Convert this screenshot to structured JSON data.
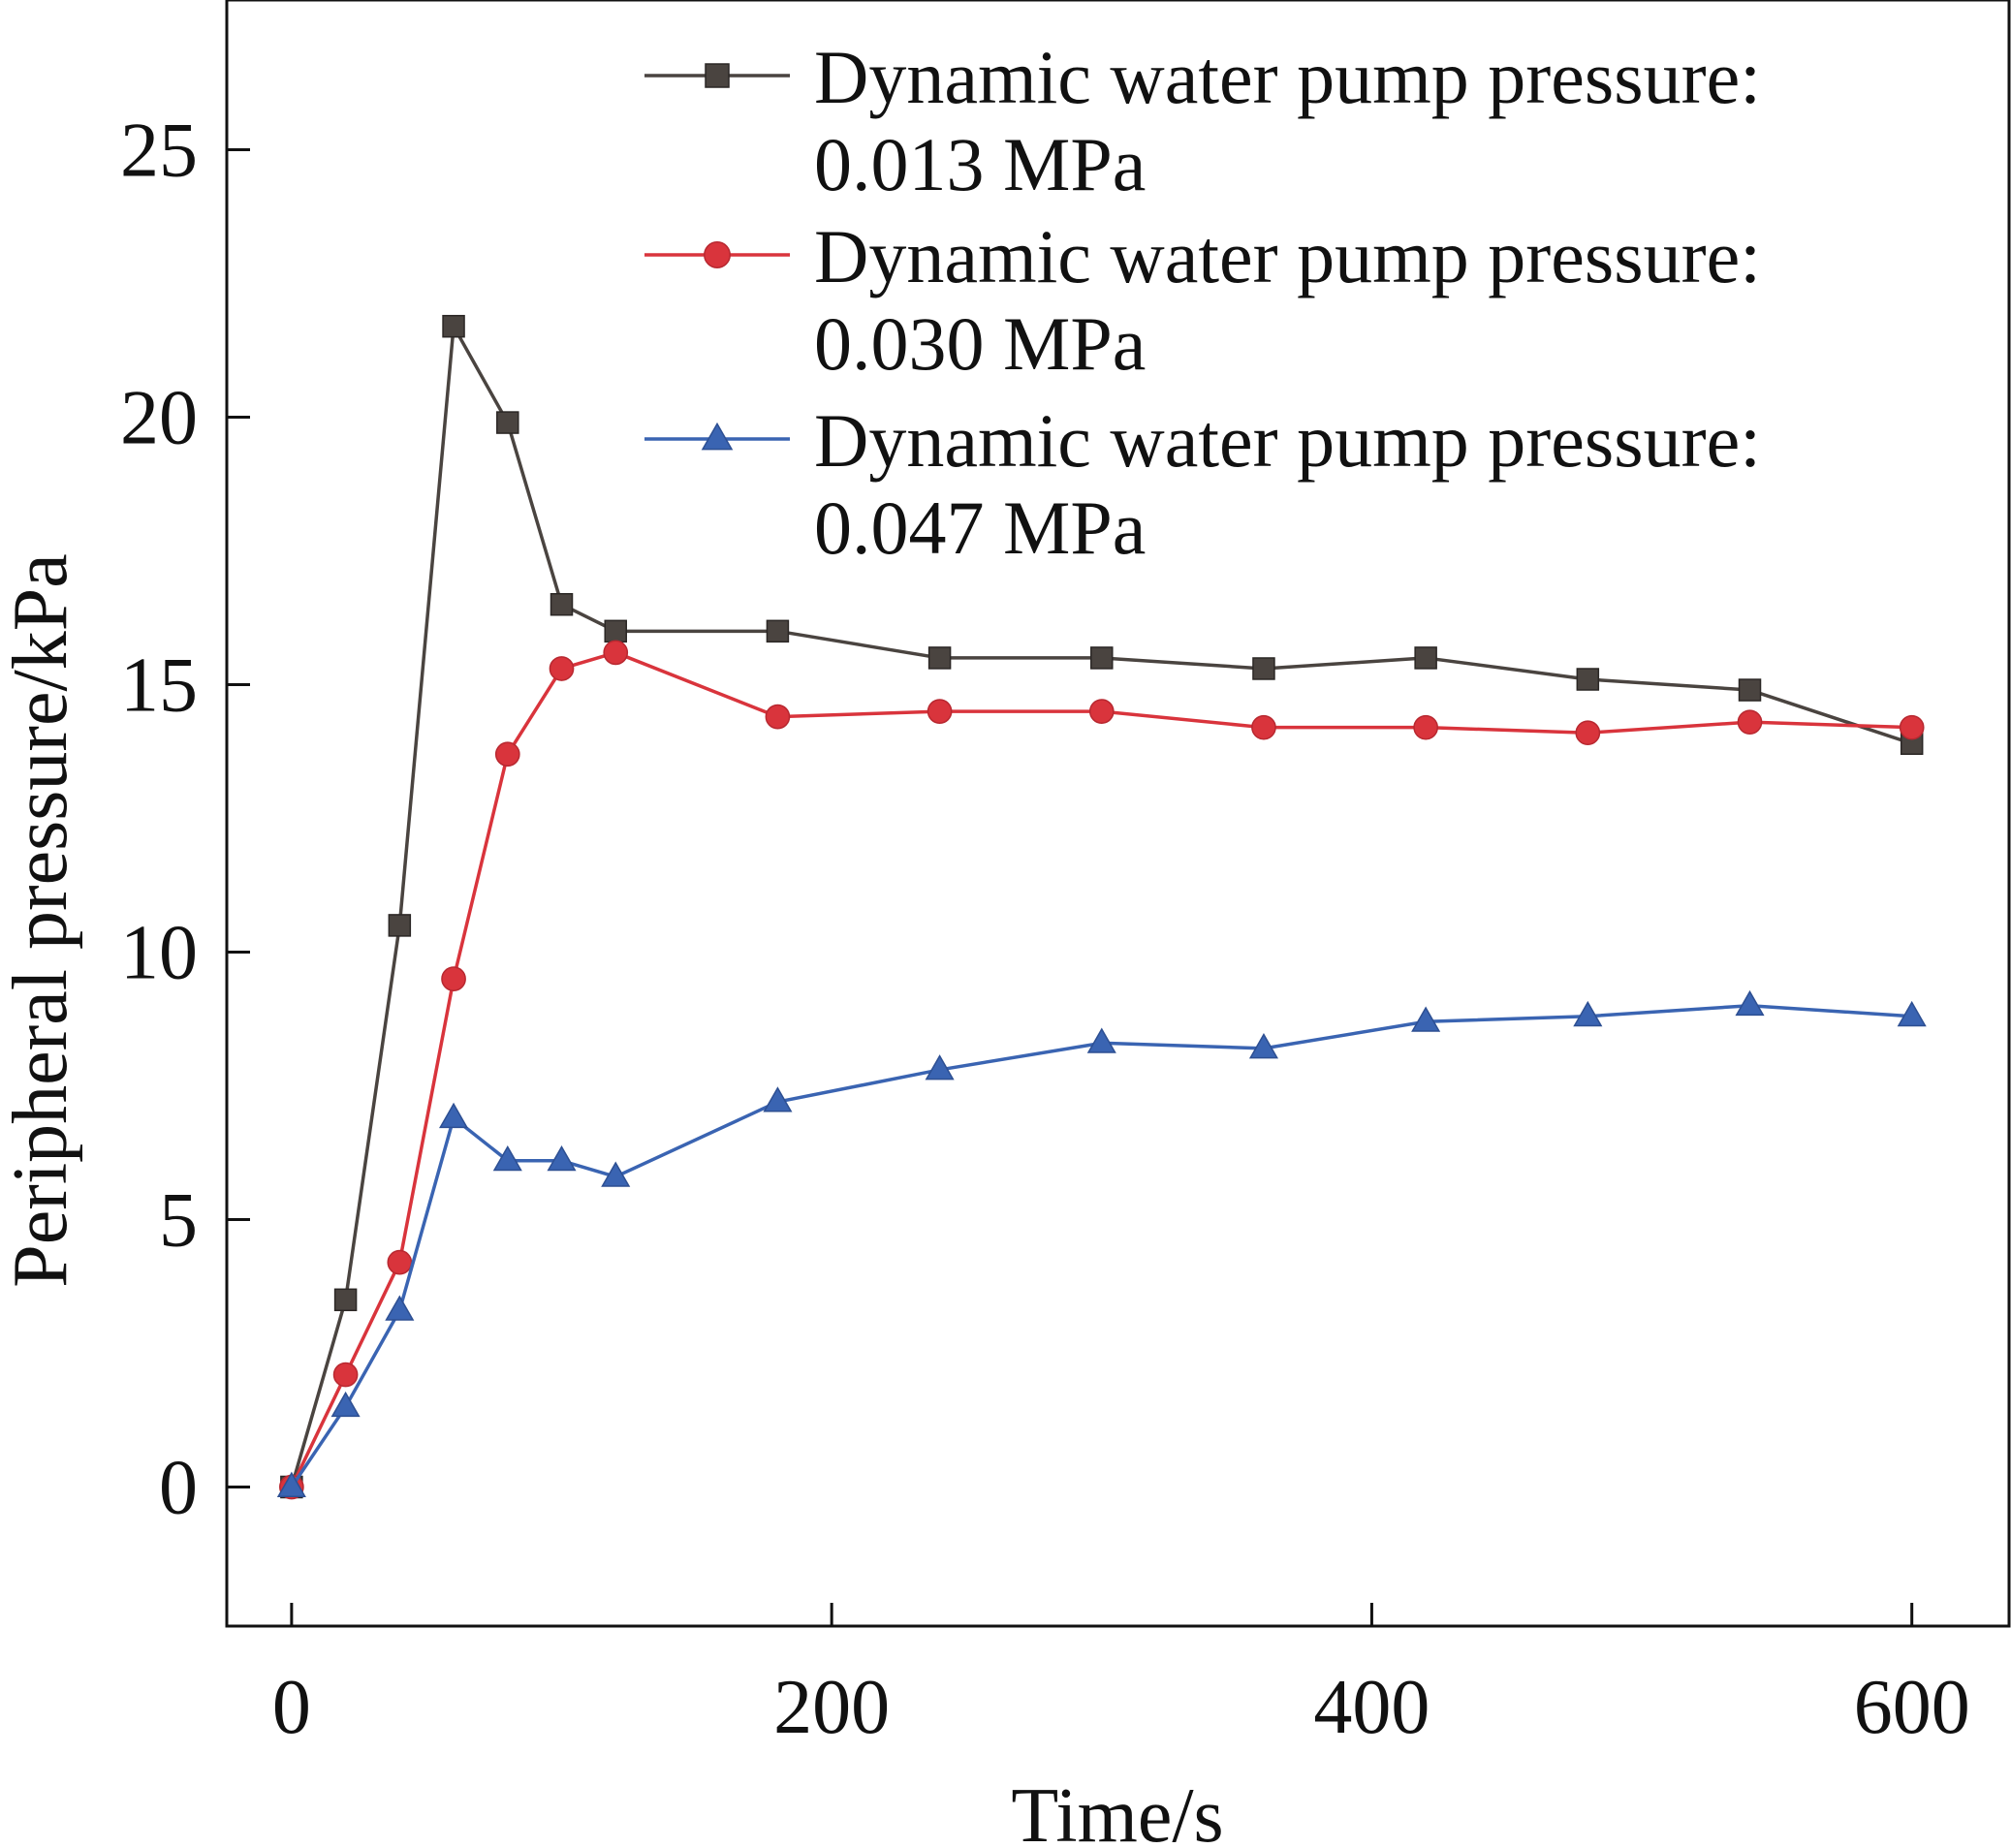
{
  "chart_data": {
    "type": "line",
    "title": "",
    "xlabel": "Time/s",
    "ylabel": "Peripheral pressure/kPa",
    "xlim": [
      -24,
      636
    ],
    "ylim": [
      -2.6,
      27.8
    ],
    "xticks": [
      0,
      200,
      400,
      600
    ],
    "yticks": [
      0,
      5,
      10,
      15,
      20,
      25
    ],
    "grid": false,
    "legend_position": "top-right",
    "series": [
      {
        "name_line1": "Dynamic water pump pressure:",
        "name_line2": "0.013 MPa",
        "color": "#4a4440",
        "marker": "square",
        "x": [
          0,
          20,
          40,
          60,
          80,
          100,
          120,
          180,
          240,
          300,
          360,
          420,
          480,
          540,
          600
        ],
        "values": [
          0,
          3.5,
          10.5,
          21.7,
          19.9,
          16.5,
          16.0,
          16.0,
          15.5,
          15.5,
          15.3,
          15.5,
          15.1,
          14.9,
          13.9
        ]
      },
      {
        "name_line1": "Dynamic water pump pressure:",
        "name_line2": "0.030 MPa",
        "color": "#d9343c",
        "marker": "circle",
        "x": [
          0,
          20,
          40,
          60,
          80,
          100,
          120,
          180,
          240,
          300,
          360,
          420,
          480,
          540,
          600
        ],
        "values": [
          0,
          2.1,
          4.2,
          9.5,
          13.7,
          15.3,
          15.6,
          14.4,
          14.5,
          14.5,
          14.2,
          14.2,
          14.1,
          14.3,
          14.2
        ]
      },
      {
        "name_line1": "Dynamic water pump pressure:",
        "name_line2": "0.047 MPa",
        "color": "#3a64b2",
        "marker": "triangle",
        "x": [
          0,
          20,
          40,
          60,
          80,
          100,
          120,
          180,
          240,
          300,
          360,
          420,
          480,
          540,
          600
        ],
        "values": [
          0,
          1.5,
          3.3,
          6.9,
          6.1,
          6.1,
          5.8,
          7.2,
          7.8,
          8.3,
          8.2,
          8.7,
          8.8,
          9.0,
          8.8
        ]
      }
    ]
  }
}
